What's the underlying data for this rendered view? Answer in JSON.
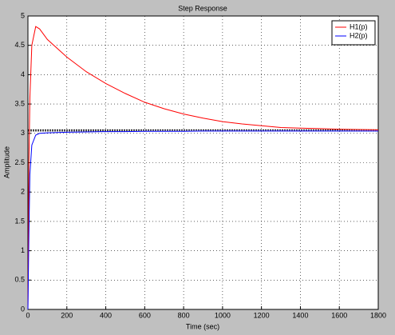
{
  "chart_data": {
    "type": "line",
    "title": "Step Response",
    "x_label": "Time (sec)",
    "y_label": "Amplitude",
    "x": [
      0,
      5,
      10,
      20,
      40,
      60,
      100,
      200,
      300,
      400,
      500,
      600,
      700,
      800,
      900,
      1000,
      1100,
      1200,
      1300,
      1400,
      1500,
      1600,
      1700,
      1800
    ],
    "series": [
      {
        "name": "H1(p)",
        "color": "#ff0000",
        "values": [
          0,
          2.5,
          3.6,
          4.5,
          4.82,
          4.78,
          4.6,
          4.3,
          4.05,
          3.85,
          3.68,
          3.53,
          3.42,
          3.33,
          3.26,
          3.2,
          3.16,
          3.13,
          3.1,
          3.09,
          3.08,
          3.07,
          3.065,
          3.06
        ]
      },
      {
        "name": "H2(p)",
        "color": "#0000ff",
        "values": [
          0,
          1.3,
          2.3,
          2.8,
          2.97,
          3.0,
          3.01,
          3.02,
          3.025,
          3.03,
          3.03,
          3.035,
          3.035,
          3.035,
          3.04,
          3.04,
          3.04,
          3.04,
          3.04,
          3.04,
          3.04,
          3.04,
          3.04,
          3.04
        ]
      }
    ],
    "steady_state": [
      3.04,
      3.06
    ],
    "xlim": [
      0,
      1800
    ],
    "xticks": [
      0,
      200,
      400,
      600,
      800,
      1000,
      1200,
      1400,
      1600,
      1800
    ],
    "ylim": [
      0,
      5
    ],
    "yticks": [
      0,
      0.5,
      1,
      1.5,
      2,
      2.5,
      3,
      3.5,
      4,
      4.5,
      5
    ],
    "grid": true,
    "legend": "top-right"
  }
}
